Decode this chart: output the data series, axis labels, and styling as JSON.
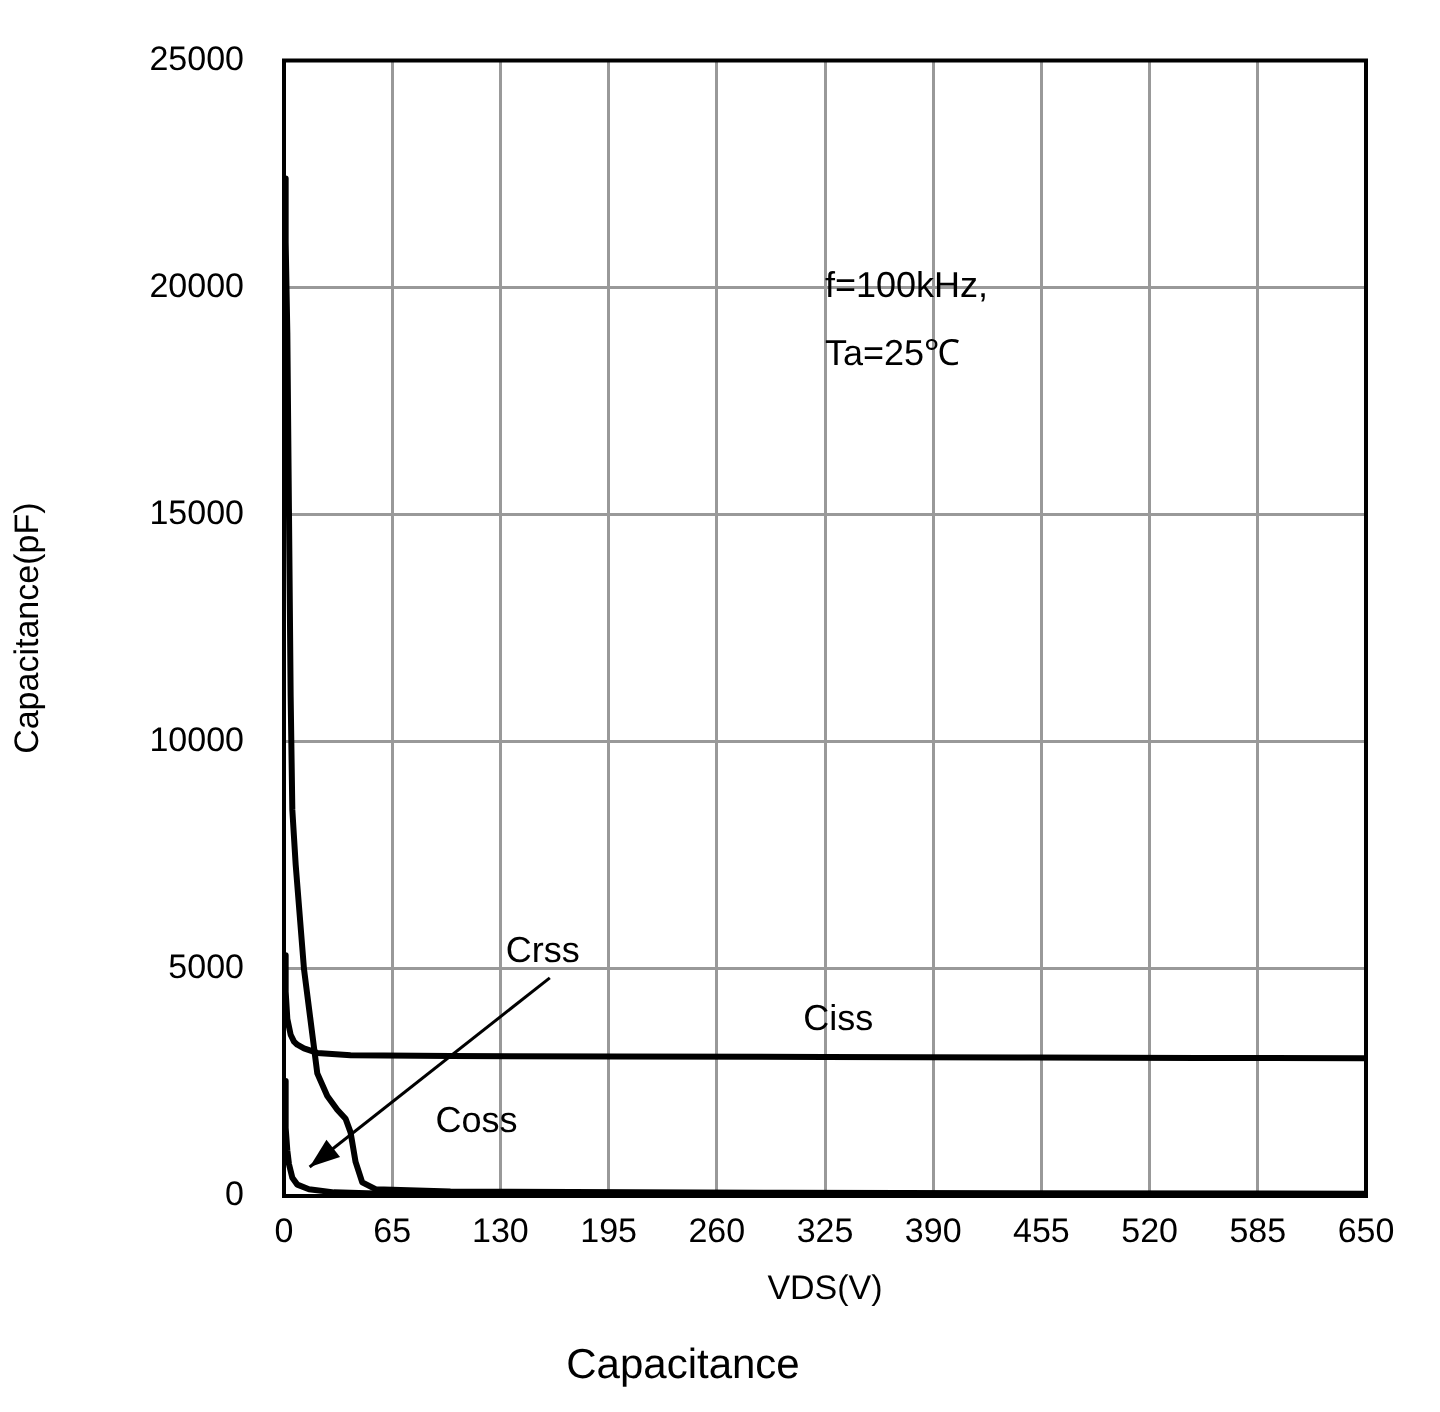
{
  "chart_data": {
    "type": "line",
    "title": "Capacitance",
    "xlabel": "VDS(V)",
    "ylabel": "Capacitance(pF)",
    "xlim": [
      0,
      650
    ],
    "xticks": [
      0,
      65,
      130,
      195,
      260,
      325,
      390,
      455,
      520,
      585,
      650
    ],
    "ylim": [
      0,
      25000
    ],
    "yticks": [
      0,
      5000,
      10000,
      15000,
      20000,
      25000
    ],
    "grid": true,
    "legend": false,
    "marker": "none",
    "line_style": "solid",
    "annotations": [
      "f=100kHz,",
      "Ta=25℃"
    ],
    "series": [
      {
        "name": "Ciss",
        "color": "#000000",
        "x": [
          0,
          1,
          2,
          4,
          6,
          8,
          12,
          20,
          40,
          100,
          200,
          325,
          450,
          550,
          650
        ],
        "values": [
          5300,
          4500,
          3900,
          3550,
          3400,
          3330,
          3250,
          3150,
          3100,
          3080,
          3070,
          3060,
          3050,
          3040,
          3030
        ]
      },
      {
        "name": "Coss",
        "color": "#000000",
        "x": [
          0,
          1,
          2,
          3,
          4,
          5,
          7,
          12,
          20,
          26,
          32,
          37,
          40,
          43,
          47,
          55,
          100,
          300,
          650
        ],
        "values": [
          22400,
          21000,
          19000,
          15000,
          11000,
          8500,
          7300,
          5000,
          2700,
          2200,
          1900,
          1700,
          1400,
          750,
          300,
          150,
          100,
          70,
          50
        ]
      },
      {
        "name": "Crss",
        "color": "#000000",
        "x": [
          0,
          1,
          2,
          3,
          5,
          8,
          15,
          30,
          60,
          200,
          650
        ],
        "values": [
          2530,
          1500,
          1000,
          700,
          400,
          250,
          150,
          80,
          50,
          30,
          20
        ]
      }
    ]
  }
}
